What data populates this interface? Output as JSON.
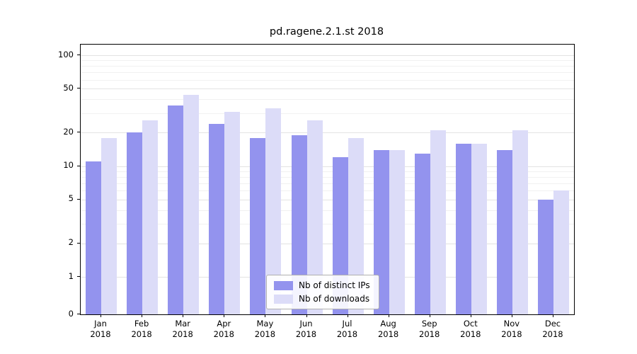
{
  "chart_data": {
    "type": "bar",
    "title": "pd.ragene.2.1.st 2018",
    "categories": [
      "Jan",
      "Feb",
      "Mar",
      "Apr",
      "May",
      "Jun",
      "Jul",
      "Aug",
      "Sep",
      "Oct",
      "Nov",
      "Dec"
    ],
    "year_label": "2018",
    "series": [
      {
        "name": "Nb of distinct IPs",
        "color": "#9393ee",
        "values": [
          11,
          20,
          35,
          24,
          18,
          19,
          12,
          14,
          13,
          16,
          14,
          5
        ]
      },
      {
        "name": "Nb of downloads",
        "color": "#dcdcf8",
        "values": [
          18,
          26,
          44,
          31,
          33,
          26,
          18,
          14,
          21,
          16,
          21,
          6
        ]
      }
    ],
    "yticks": [
      0,
      1,
      2,
      5,
      10,
      20,
      50,
      100
    ],
    "minor_yticks": [
      3,
      4,
      6,
      7,
      8,
      9,
      30,
      40,
      60,
      70,
      80,
      90
    ],
    "scale": "symlog",
    "ylim": [
      0,
      130
    ],
    "grid": true,
    "legend_position": "lower center",
    "axis_color": "#000000",
    "grid_color": "#e3e3e3"
  }
}
